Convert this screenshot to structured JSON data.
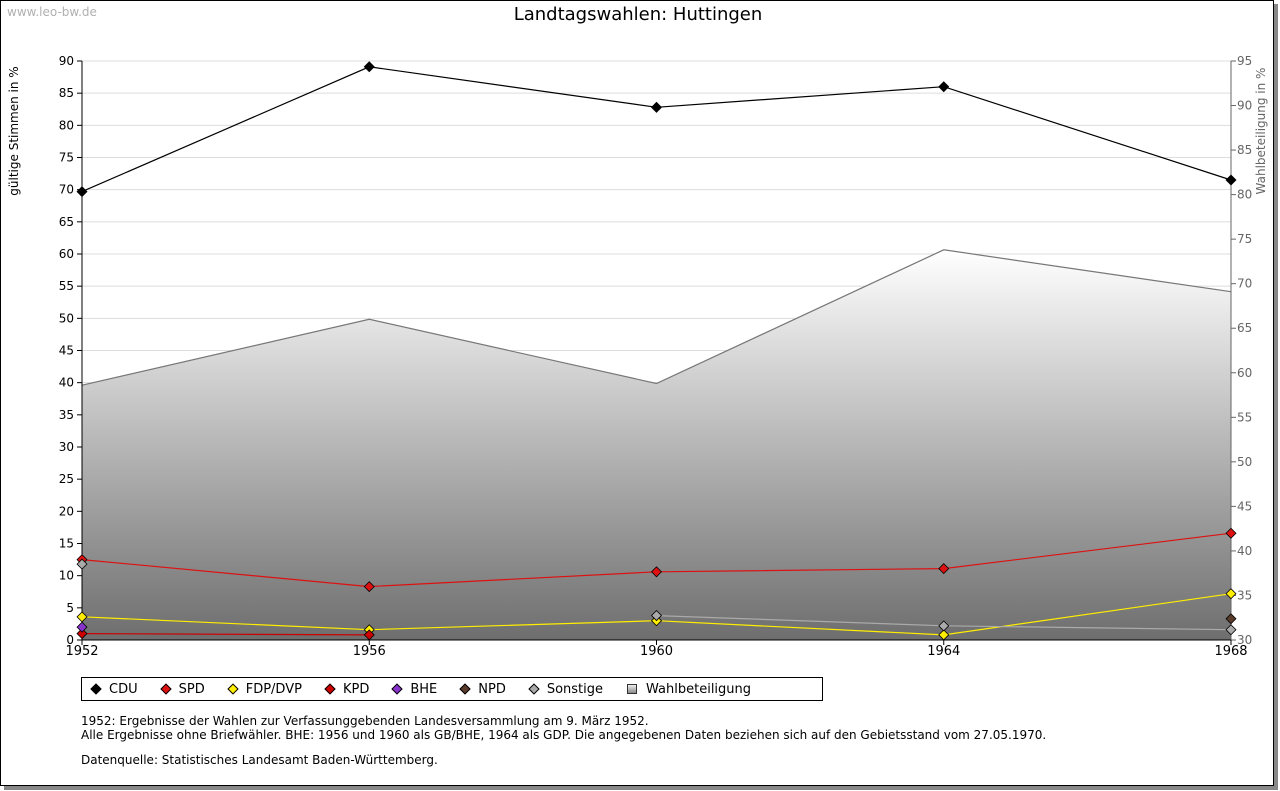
{
  "watermark": "www.leo-bw.de",
  "chart_data": {
    "type": "line",
    "title": "Landtagswahlen: Huttingen",
    "ylabel": "gültige Stimmen in %",
    "ylabel_right": "Wahlbeteiligung in %",
    "xlabel": "",
    "x": [
      "1952",
      "1956",
      "1960",
      "1964",
      "1968"
    ],
    "ylim": [
      0,
      90
    ],
    "ylim_right": [
      30,
      95
    ],
    "yticks": [
      0,
      5,
      10,
      15,
      20,
      25,
      30,
      35,
      40,
      45,
      50,
      55,
      60,
      65,
      70,
      75,
      80,
      85,
      90
    ],
    "yticks_right": [
      30,
      35,
      40,
      45,
      50,
      55,
      60,
      65,
      70,
      75,
      80,
      85,
      90,
      95
    ],
    "grid": true,
    "series": [
      {
        "name": "CDU",
        "color": "#000000",
        "values": [
          69.7,
          89.1,
          82.8,
          86.0,
          71.5
        ]
      },
      {
        "name": "SPD",
        "color": "#dd1111",
        "values": [
          12.5,
          8.3,
          10.6,
          11.1,
          16.6
        ]
      },
      {
        "name": "FDP/DVP",
        "color": "#ffee00",
        "values": [
          3.6,
          1.6,
          3.0,
          0.8,
          7.2
        ]
      },
      {
        "name": "KPD",
        "color": "#cc0000",
        "values": [
          1.0,
          0.8,
          null,
          null,
          null
        ]
      },
      {
        "name": "BHE",
        "color": "#8833cc",
        "values": [
          2.0,
          null,
          null,
          null,
          null
        ]
      },
      {
        "name": "NPD",
        "color": "#5a3a2a",
        "values": [
          null,
          null,
          null,
          null,
          3.3
        ]
      },
      {
        "name": "Sonstige",
        "color": "#aaaaaa",
        "values": [
          11.8,
          null,
          3.8,
          2.2,
          1.6
        ]
      },
      {
        "name": "Wahlbeteiligung",
        "color": "#777777",
        "axis": "right",
        "type": "area",
        "values": [
          58.6,
          66.0,
          58.8,
          73.8,
          69.1
        ]
      }
    ]
  },
  "notes": {
    "line1": "1952: Ergebnisse der Wahlen zur Verfassunggebenden Landesversammlung am 9. März 1952.",
    "line2": "Alle Ergebnisse ohne Briefwähler. BHE: 1956 und 1960 als GB/BHE, 1964 als GDP. Die angegebenen Daten beziehen sich auf den Gebietsstand vom 27.05.1970.",
    "source": "Datenquelle: Statistisches Landesamt Baden-Württemberg."
  }
}
